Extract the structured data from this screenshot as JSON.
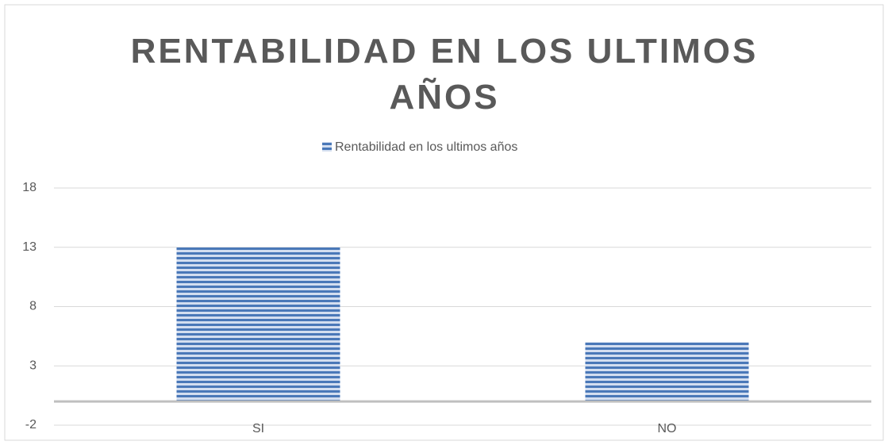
{
  "chart_data": {
    "type": "bar",
    "title": "RENTABILIDAD EN LOS ULTIMOS AÑOS",
    "categories": [
      "SI",
      "NO"
    ],
    "series": [
      {
        "name": "Rentabilidad en los ultimos años",
        "color": "#4a78b8",
        "values": [
          13,
          5
        ]
      }
    ],
    "ylim": [
      -2,
      18
    ],
    "yticks": [
      -2,
      3,
      8,
      13,
      18
    ],
    "grid": true,
    "legend": "top"
  }
}
